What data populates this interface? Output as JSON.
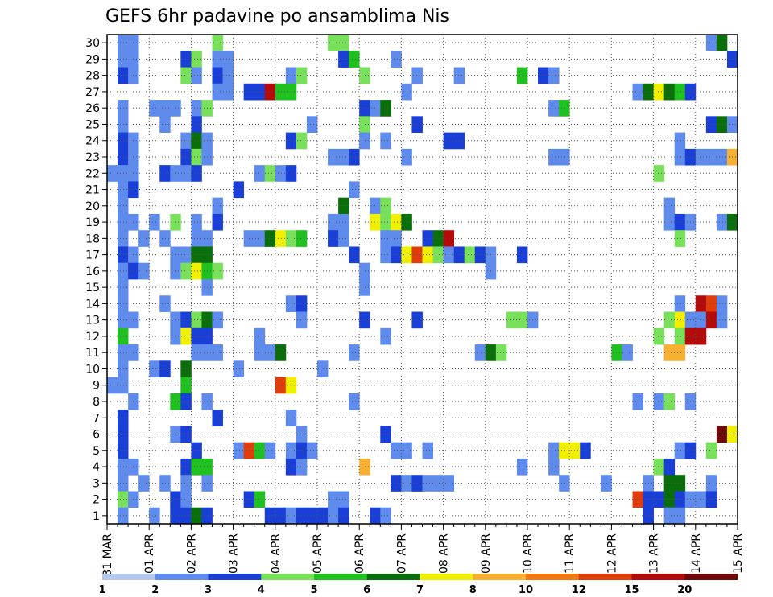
{
  "chart_data": {
    "type": "heatmap",
    "title": "GEFS 6hr padavine po ansamblima Nis",
    "x_tick_labels": [
      "31 MAR",
      "01 APR",
      "02 APR",
      "03 APR",
      "04 APR",
      "05 APR",
      "06 APR",
      "07 APR",
      "08 APR",
      "09 APR",
      "10 APR",
      "11 APR",
      "12 APR",
      "13 APR",
      "14 APR",
      "15 APR"
    ],
    "x_steps_per_day": 4,
    "x_steps": 60,
    "y_members": [
      1,
      30
    ],
    "grid": true,
    "colorbar": {
      "bounds": [
        "1",
        "2",
        "3",
        "4",
        "5",
        "6",
        "7",
        "8",
        "10",
        "12",
        "15",
        "20"
      ],
      "colors": [
        "#b4c8f0",
        "#5f8cec",
        "#1a3fd6",
        "#78e05a",
        "#20c020",
        "#0a6e0a",
        "#f0f000",
        "#f8b030",
        "#f07810",
        "#e03c0c",
        "#b40a0a",
        "#6e0a0a"
      ]
    },
    "cells": [
      [
        1,
        30,
        1
      ],
      [
        2,
        30,
        1
      ],
      [
        10,
        30,
        3
      ],
      [
        21,
        30,
        3
      ],
      [
        22,
        30,
        3
      ],
      [
        57,
        30,
        1
      ],
      [
        58,
        30,
        5
      ],
      [
        1,
        29,
        1
      ],
      [
        2,
        29,
        1
      ],
      [
        7,
        29,
        2
      ],
      [
        8,
        29,
        3
      ],
      [
        10,
        29,
        1
      ],
      [
        11,
        29,
        1
      ],
      [
        22,
        29,
        2
      ],
      [
        23,
        29,
        4
      ],
      [
        27,
        29,
        1
      ],
      [
        59,
        29,
        2
      ],
      [
        1,
        28,
        2
      ],
      [
        2,
        28,
        1
      ],
      [
        7,
        28,
        3
      ],
      [
        8,
        28,
        1
      ],
      [
        10,
        28,
        2
      ],
      [
        11,
        28,
        1
      ],
      [
        17,
        28,
        1
      ],
      [
        18,
        28,
        3
      ],
      [
        24,
        28,
        3
      ],
      [
        29,
        28,
        1
      ],
      [
        33,
        28,
        1
      ],
      [
        39,
        28,
        4
      ],
      [
        41,
        28,
        2
      ],
      [
        42,
        28,
        1
      ],
      [
        10,
        27,
        1
      ],
      [
        11,
        27,
        1
      ],
      [
        13,
        27,
        2
      ],
      [
        14,
        27,
        2
      ],
      [
        15,
        27,
        10
      ],
      [
        16,
        27,
        4
      ],
      [
        17,
        27,
        4
      ],
      [
        28,
        27,
        1
      ],
      [
        50,
        27,
        1
      ],
      [
        51,
        27,
        5
      ],
      [
        52,
        27,
        6
      ],
      [
        53,
        27,
        5
      ],
      [
        54,
        27,
        4
      ],
      [
        55,
        27,
        2
      ],
      [
        1,
        26,
        1
      ],
      [
        4,
        26,
        1
      ],
      [
        5,
        26,
        1
      ],
      [
        6,
        26,
        1
      ],
      [
        8,
        26,
        1
      ],
      [
        9,
        26,
        3
      ],
      [
        24,
        26,
        2
      ],
      [
        25,
        26,
        1
      ],
      [
        26,
        26,
        5
      ],
      [
        42,
        26,
        1
      ],
      [
        43,
        26,
        4
      ],
      [
        1,
        25,
        1
      ],
      [
        5,
        25,
        1
      ],
      [
        8,
        25,
        2
      ],
      [
        19,
        25,
        1
      ],
      [
        24,
        25,
        3
      ],
      [
        29,
        25,
        2
      ],
      [
        57,
        25,
        2
      ],
      [
        58,
        25,
        5
      ],
      [
        59,
        25,
        1
      ],
      [
        1,
        24,
        2
      ],
      [
        2,
        24,
        1
      ],
      [
        7,
        24,
        1
      ],
      [
        8,
        24,
        5
      ],
      [
        9,
        24,
        1
      ],
      [
        17,
        24,
        2
      ],
      [
        18,
        24,
        3
      ],
      [
        24,
        24,
        1
      ],
      [
        26,
        24,
        1
      ],
      [
        32,
        24,
        2
      ],
      [
        33,
        24,
        2
      ],
      [
        54,
        24,
        1
      ],
      [
        1,
        23,
        2
      ],
      [
        2,
        23,
        1
      ],
      [
        7,
        23,
        2
      ],
      [
        8,
        23,
        3
      ],
      [
        9,
        23,
        1
      ],
      [
        21,
        23,
        1
      ],
      [
        22,
        23,
        1
      ],
      [
        23,
        23,
        2
      ],
      [
        28,
        23,
        1
      ],
      [
        42,
        23,
        1
      ],
      [
        43,
        23,
        1
      ],
      [
        54,
        23,
        1
      ],
      [
        55,
        23,
        2
      ],
      [
        56,
        23,
        1
      ],
      [
        57,
        23,
        1
      ],
      [
        58,
        23,
        1
      ],
      [
        59,
        23,
        7
      ],
      [
        0,
        22,
        1
      ],
      [
        1,
        22,
        1
      ],
      [
        2,
        22,
        1
      ],
      [
        5,
        22,
        2
      ],
      [
        6,
        22,
        1
      ],
      [
        7,
        22,
        1
      ],
      [
        8,
        22,
        2
      ],
      [
        14,
        22,
        1
      ],
      [
        15,
        22,
        3
      ],
      [
        16,
        22,
        1
      ],
      [
        17,
        22,
        2
      ],
      [
        52,
        22,
        3
      ],
      [
        1,
        21,
        1
      ],
      [
        2,
        21,
        2
      ],
      [
        12,
        21,
        2
      ],
      [
        23,
        21,
        1
      ],
      [
        1,
        20,
        1
      ],
      [
        10,
        20,
        1
      ],
      [
        22,
        20,
        5
      ],
      [
        25,
        20,
        1
      ],
      [
        26,
        20,
        3
      ],
      [
        53,
        20,
        1
      ],
      [
        1,
        19,
        1
      ],
      [
        2,
        19,
        1
      ],
      [
        4,
        19,
        1
      ],
      [
        6,
        19,
        3
      ],
      [
        8,
        19,
        1
      ],
      [
        10,
        19,
        2
      ],
      [
        21,
        19,
        1
      ],
      [
        22,
        19,
        1
      ],
      [
        25,
        19,
        6
      ],
      [
        26,
        19,
        3
      ],
      [
        27,
        19,
        6
      ],
      [
        28,
        19,
        5
      ],
      [
        53,
        19,
        1
      ],
      [
        54,
        19,
        2
      ],
      [
        55,
        19,
        1
      ],
      [
        58,
        19,
        1
      ],
      [
        59,
        19,
        5
      ],
      [
        1,
        18,
        1
      ],
      [
        3,
        18,
        1
      ],
      [
        5,
        18,
        1
      ],
      [
        8,
        18,
        1
      ],
      [
        9,
        18,
        1
      ],
      [
        13,
        18,
        1
      ],
      [
        14,
        18,
        1
      ],
      [
        15,
        18,
        5
      ],
      [
        16,
        18,
        6
      ],
      [
        17,
        18,
        3
      ],
      [
        18,
        18,
        4
      ],
      [
        21,
        18,
        2
      ],
      [
        22,
        18,
        1
      ],
      [
        26,
        18,
        1
      ],
      [
        27,
        18,
        1
      ],
      [
        30,
        18,
        2
      ],
      [
        31,
        18,
        5
      ],
      [
        32,
        18,
        10
      ],
      [
        54,
        18,
        3
      ],
      [
        1,
        17,
        2
      ],
      [
        2,
        17,
        1
      ],
      [
        6,
        17,
        1
      ],
      [
        7,
        17,
        1
      ],
      [
        8,
        17,
        5
      ],
      [
        9,
        17,
        5
      ],
      [
        23,
        17,
        2
      ],
      [
        26,
        17,
        1
      ],
      [
        27,
        17,
        2
      ],
      [
        28,
        17,
        6
      ],
      [
        29,
        17,
        9
      ],
      [
        30,
        17,
        6
      ],
      [
        31,
        17,
        3
      ],
      [
        32,
        17,
        1
      ],
      [
        33,
        17,
        2
      ],
      [
        34,
        17,
        3
      ],
      [
        35,
        17,
        2
      ],
      [
        36,
        17,
        1
      ],
      [
        39,
        17,
        2
      ],
      [
        1,
        16,
        1
      ],
      [
        2,
        16,
        2
      ],
      [
        3,
        16,
        1
      ],
      [
        6,
        16,
        1
      ],
      [
        7,
        16,
        3
      ],
      [
        8,
        16,
        6
      ],
      [
        9,
        16,
        4
      ],
      [
        10,
        16,
        3
      ],
      [
        24,
        16,
        1
      ],
      [
        36,
        16,
        1
      ],
      [
        1,
        15,
        1
      ],
      [
        9,
        15,
        1
      ],
      [
        24,
        15,
        1
      ],
      [
        1,
        14,
        1
      ],
      [
        5,
        14,
        1
      ],
      [
        17,
        14,
        1
      ],
      [
        18,
        14,
        2
      ],
      [
        54,
        14,
        1
      ],
      [
        56,
        14,
        10
      ],
      [
        57,
        14,
        9
      ],
      [
        58,
        14,
        1
      ],
      [
        1,
        13,
        1
      ],
      [
        2,
        13,
        1
      ],
      [
        6,
        13,
        1
      ],
      [
        7,
        13,
        2
      ],
      [
        8,
        13,
        3
      ],
      [
        9,
        13,
        5
      ],
      [
        10,
        13,
        1
      ],
      [
        18,
        13,
        1
      ],
      [
        24,
        13,
        2
      ],
      [
        29,
        13,
        2
      ],
      [
        38,
        13,
        3
      ],
      [
        39,
        13,
        3
      ],
      [
        40,
        13,
        1
      ],
      [
        53,
        13,
        3
      ],
      [
        54,
        13,
        6
      ],
      [
        55,
        13,
        1
      ],
      [
        56,
        13,
        1
      ],
      [
        57,
        13,
        10
      ],
      [
        58,
        13,
        1
      ],
      [
        1,
        12,
        4
      ],
      [
        6,
        12,
        1
      ],
      [
        7,
        12,
        6
      ],
      [
        8,
        12,
        2
      ],
      [
        9,
        12,
        2
      ],
      [
        14,
        12,
        1
      ],
      [
        26,
        12,
        1
      ],
      [
        52,
        12,
        3
      ],
      [
        54,
        12,
        3
      ],
      [
        55,
        12,
        10
      ],
      [
        56,
        12,
        10
      ],
      [
        1,
        11,
        1
      ],
      [
        2,
        11,
        1
      ],
      [
        8,
        11,
        1
      ],
      [
        9,
        11,
        1
      ],
      [
        10,
        11,
        1
      ],
      [
        14,
        11,
        1
      ],
      [
        15,
        11,
        1
      ],
      [
        16,
        11,
        5
      ],
      [
        23,
        11,
        1
      ],
      [
        35,
        11,
        1
      ],
      [
        36,
        11,
        5
      ],
      [
        37,
        11,
        3
      ],
      [
        48,
        11,
        4
      ],
      [
        49,
        11,
        1
      ],
      [
        53,
        11,
        7
      ],
      [
        54,
        11,
        7
      ],
      [
        1,
        10,
        1
      ],
      [
        4,
        10,
        1
      ],
      [
        5,
        10,
        2
      ],
      [
        7,
        10,
        5
      ],
      [
        12,
        10,
        1
      ],
      [
        20,
        10,
        1
      ],
      [
        0,
        9,
        1
      ],
      [
        1,
        9,
        1
      ],
      [
        7,
        9,
        4
      ],
      [
        16,
        9,
        9
      ],
      [
        17,
        9,
        6
      ],
      [
        2,
        8,
        1
      ],
      [
        6,
        8,
        4
      ],
      [
        7,
        8,
        2
      ],
      [
        9,
        8,
        1
      ],
      [
        23,
        8,
        1
      ],
      [
        50,
        8,
        1
      ],
      [
        52,
        8,
        1
      ],
      [
        53,
        8,
        3
      ],
      [
        55,
        8,
        1
      ],
      [
        1,
        7,
        2
      ],
      [
        10,
        7,
        2
      ],
      [
        17,
        7,
        1
      ],
      [
        1,
        6,
        2
      ],
      [
        6,
        6,
        1
      ],
      [
        7,
        6,
        2
      ],
      [
        18,
        6,
        1
      ],
      [
        26,
        6,
        2
      ],
      [
        58,
        6,
        11
      ],
      [
        59,
        6,
        6
      ],
      [
        1,
        5,
        2
      ],
      [
        8,
        5,
        2
      ],
      [
        12,
        5,
        1
      ],
      [
        13,
        5,
        9
      ],
      [
        14,
        5,
        4
      ],
      [
        15,
        5,
        1
      ],
      [
        17,
        5,
        1
      ],
      [
        18,
        5,
        2
      ],
      [
        19,
        5,
        1
      ],
      [
        27,
        5,
        1
      ],
      [
        28,
        5,
        1
      ],
      [
        30,
        5,
        1
      ],
      [
        42,
        5,
        1
      ],
      [
        43,
        5,
        6
      ],
      [
        44,
        5,
        6
      ],
      [
        45,
        5,
        2
      ],
      [
        54,
        5,
        1
      ],
      [
        55,
        5,
        2
      ],
      [
        57,
        5,
        3
      ],
      [
        1,
        4,
        1
      ],
      [
        2,
        4,
        1
      ],
      [
        7,
        4,
        2
      ],
      [
        8,
        4,
        4
      ],
      [
        9,
        4,
        4
      ],
      [
        17,
        4,
        2
      ],
      [
        18,
        4,
        1
      ],
      [
        24,
        4,
        7
      ],
      [
        39,
        4,
        1
      ],
      [
        42,
        4,
        1
      ],
      [
        52,
        4,
        3
      ],
      [
        53,
        4,
        2
      ],
      [
        1,
        3,
        1
      ],
      [
        3,
        3,
        1
      ],
      [
        5,
        3,
        1
      ],
      [
        7,
        3,
        1
      ],
      [
        9,
        3,
        1
      ],
      [
        27,
        3,
        2
      ],
      [
        28,
        3,
        1
      ],
      [
        29,
        3,
        2
      ],
      [
        30,
        3,
        1
      ],
      [
        31,
        3,
        1
      ],
      [
        32,
        3,
        1
      ],
      [
        43,
        3,
        1
      ],
      [
        47,
        3,
        1
      ],
      [
        51,
        3,
        1
      ],
      [
        53,
        3,
        5
      ],
      [
        54,
        3,
        5
      ],
      [
        57,
        3,
        1
      ],
      [
        1,
        2,
        3
      ],
      [
        2,
        2,
        1
      ],
      [
        6,
        2,
        2
      ],
      [
        7,
        2,
        1
      ],
      [
        13,
        2,
        2
      ],
      [
        14,
        2,
        4
      ],
      [
        21,
        2,
        1
      ],
      [
        22,
        2,
        1
      ],
      [
        50,
        2,
        9
      ],
      [
        51,
        2,
        2
      ],
      [
        52,
        2,
        2
      ],
      [
        53,
        2,
        5
      ],
      [
        54,
        2,
        2
      ],
      [
        55,
        2,
        1
      ],
      [
        56,
        2,
        1
      ],
      [
        57,
        2,
        2
      ],
      [
        1,
        1,
        1
      ],
      [
        4,
        1,
        1
      ],
      [
        6,
        1,
        2
      ],
      [
        7,
        1,
        2
      ],
      [
        8,
        1,
        5
      ],
      [
        9,
        1,
        2
      ],
      [
        15,
        1,
        2
      ],
      [
        16,
        1,
        2
      ],
      [
        17,
        1,
        1
      ],
      [
        18,
        1,
        2
      ],
      [
        19,
        1,
        2
      ],
      [
        20,
        1,
        2
      ],
      [
        21,
        1,
        1
      ],
      [
        22,
        1,
        2
      ],
      [
        25,
        1,
        2
      ],
      [
        26,
        1,
        1
      ],
      [
        51,
        1,
        2
      ],
      [
        53,
        1,
        1
      ],
      [
        54,
        1,
        1
      ]
    ]
  }
}
